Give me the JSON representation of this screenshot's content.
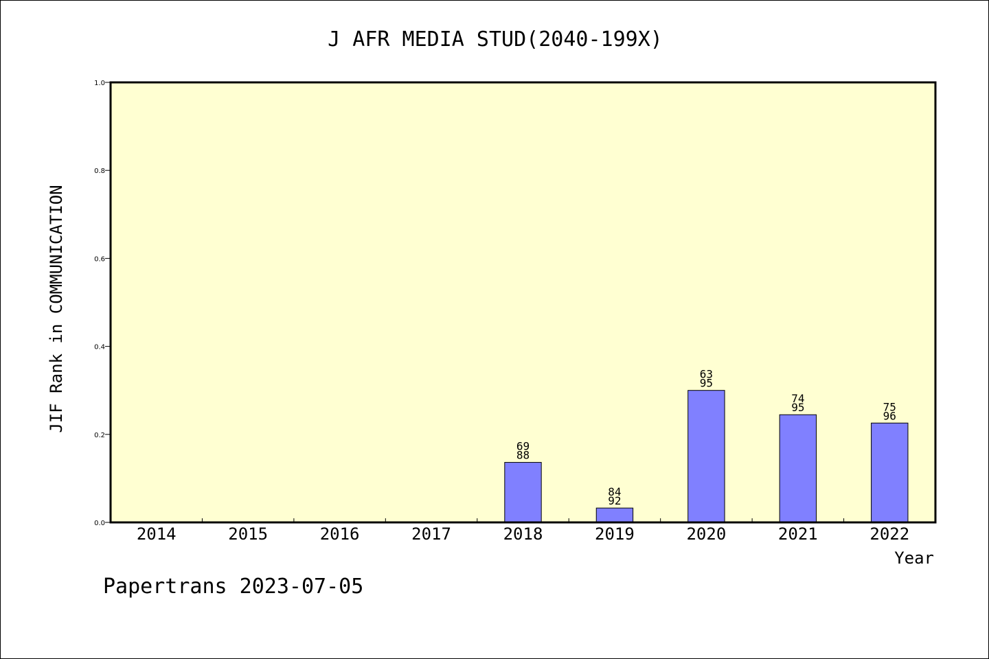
{
  "chart_data": {
    "type": "bar",
    "title": "J AFR MEDIA STUD(2040-199X)",
    "xlabel": "Year",
    "ylabel": "JIF Rank in COMMUNICATION",
    "ylim": [
      0,
      1.0
    ],
    "yticks": [
      "0.0",
      "0.2",
      "0.4",
      "0.6",
      "0.8",
      "1.0"
    ],
    "categories": [
      "2014",
      "2015",
      "2016",
      "2017",
      "2018",
      "2019",
      "2020",
      "2021",
      "2022"
    ],
    "values": [
      null,
      null,
      null,
      null,
      0.1364,
      0.0326,
      0.3,
      0.2447,
      0.2258
    ],
    "bar_labels": [
      null,
      null,
      null,
      null,
      {
        "rank": "69",
        "total": "88"
      },
      {
        "rank": "84",
        "total": "92"
      },
      {
        "rank": "63",
        "total": "95"
      },
      {
        "rank": "74",
        "total": "95"
      },
      {
        "rank": "75",
        "total": "96"
      }
    ],
    "grid": false,
    "legend": "none",
    "colors": {
      "plot_background": "#ffffd2",
      "bar_fill": "#8080ff",
      "bar_stroke": "#000000"
    }
  },
  "footer": {
    "credit": "Papertrans 2023-07-05"
  }
}
